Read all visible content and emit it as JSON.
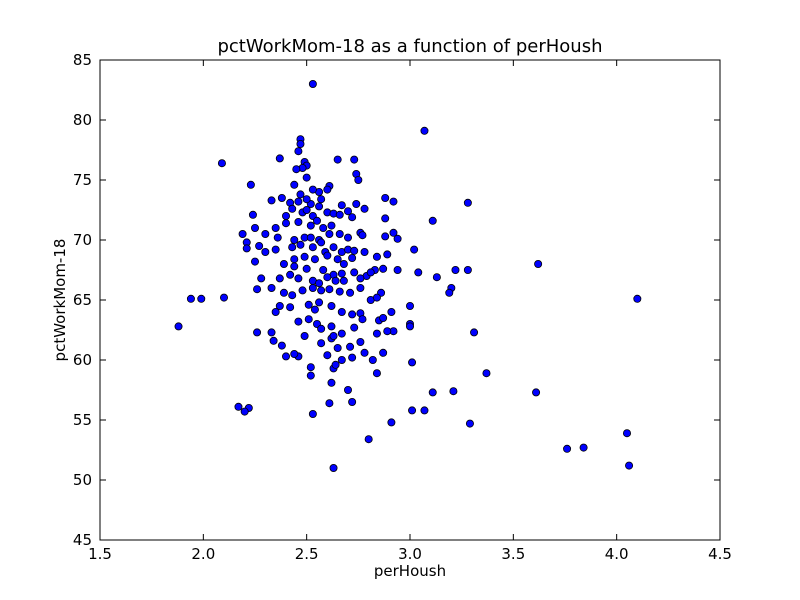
{
  "chart_data": {
    "type": "scatter",
    "title": "pctWorkMom-18 as a function of perHoush",
    "xlabel": "perHoush",
    "ylabel": "pctWorkMom-18",
    "xlim": [
      1.5,
      4.5
    ],
    "ylim": [
      45,
      85
    ],
    "x_ticks": [
      "1.5",
      "2.0",
      "2.5",
      "3.0",
      "3.5",
      "4.0",
      "4.5"
    ],
    "y_ticks": [
      "45",
      "50",
      "55",
      "60",
      "65",
      "70",
      "75",
      "80",
      "85"
    ],
    "marker_color": "#0000ff",
    "marker_edge": "#000000",
    "series": [
      {
        "name": "pctWorkMom-18",
        "points": [
          [
            2.53,
            83.0
          ],
          [
            3.07,
            79.1
          ],
          [
            2.47,
            78.4
          ],
          [
            2.47,
            78.0
          ],
          [
            2.46,
            77.4
          ],
          [
            2.49,
            76.5
          ],
          [
            2.37,
            76.8
          ],
          [
            2.09,
            76.4
          ],
          [
            2.65,
            76.7
          ],
          [
            2.73,
            76.7
          ],
          [
            2.5,
            76.2
          ],
          [
            2.48,
            76.0
          ],
          [
            2.45,
            75.9
          ],
          [
            2.74,
            75.5
          ],
          [
            2.75,
            75.0
          ],
          [
            2.5,
            75.2
          ],
          [
            2.44,
            74.6
          ],
          [
            2.23,
            74.6
          ],
          [
            2.61,
            74.5
          ],
          [
            2.56,
            74.0
          ],
          [
            2.6,
            74.2
          ],
          [
            2.53,
            74.2
          ],
          [
            2.47,
            73.8
          ],
          [
            2.38,
            73.5
          ],
          [
            2.46,
            73.2
          ],
          [
            2.42,
            73.1
          ],
          [
            2.52,
            73.0
          ],
          [
            2.33,
            73.3
          ],
          [
            2.5,
            73.4
          ],
          [
            2.57,
            73.4
          ],
          [
            2.67,
            72.9
          ],
          [
            2.74,
            73.0
          ],
          [
            2.88,
            73.5
          ],
          [
            2.92,
            73.2
          ],
          [
            3.28,
            73.1
          ],
          [
            2.43,
            72.6
          ],
          [
            2.48,
            72.3
          ],
          [
            2.5,
            72.5
          ],
          [
            2.4,
            72.0
          ],
          [
            2.56,
            72.8
          ],
          [
            2.6,
            72.3
          ],
          [
            2.63,
            72.2
          ],
          [
            2.7,
            72.4
          ],
          [
            2.78,
            72.6
          ],
          [
            2.24,
            72.1
          ],
          [
            2.53,
            72.0
          ],
          [
            2.55,
            71.6
          ],
          [
            2.66,
            72.1
          ],
          [
            2.72,
            71.9
          ],
          [
            2.88,
            71.8
          ],
          [
            3.11,
            71.6
          ],
          [
            2.35,
            71.0
          ],
          [
            2.4,
            71.4
          ],
          [
            2.46,
            71.5
          ],
          [
            2.52,
            71.2
          ],
          [
            2.58,
            71.0
          ],
          [
            2.62,
            71.2
          ],
          [
            2.25,
            71.0
          ],
          [
            2.3,
            70.5
          ],
          [
            2.19,
            70.5
          ],
          [
            2.36,
            70.2
          ],
          [
            2.44,
            70.0
          ],
          [
            2.49,
            70.2
          ],
          [
            2.52,
            70.2
          ],
          [
            2.56,
            70.0
          ],
          [
            2.61,
            70.5
          ],
          [
            2.66,
            70.5
          ],
          [
            2.7,
            70.2
          ],
          [
            2.76,
            70.6
          ],
          [
            2.77,
            70.4
          ],
          [
            2.88,
            70.3
          ],
          [
            2.92,
            70.6
          ],
          [
            2.94,
            70.1
          ],
          [
            2.21,
            69.8
          ],
          [
            2.27,
            69.5
          ],
          [
            2.3,
            69.0
          ],
          [
            2.35,
            69.2
          ],
          [
            2.43,
            69.4
          ],
          [
            2.47,
            69.6
          ],
          [
            2.53,
            69.4
          ],
          [
            2.57,
            69.8
          ],
          [
            2.59,
            69.0
          ],
          [
            2.63,
            69.4
          ],
          [
            2.67,
            69.0
          ],
          [
            2.7,
            69.2
          ],
          [
            2.73,
            69.1
          ],
          [
            2.78,
            69.0
          ],
          [
            2.89,
            68.8
          ],
          [
            3.02,
            69.2
          ],
          [
            2.21,
            69.3
          ],
          [
            2.25,
            68.2
          ],
          [
            2.39,
            68.0
          ],
          [
            2.44,
            68.4
          ],
          [
            2.49,
            68.6
          ],
          [
            2.54,
            68.4
          ],
          [
            2.6,
            68.7
          ],
          [
            2.65,
            68.4
          ],
          [
            2.68,
            68.0
          ],
          [
            2.72,
            68.5
          ],
          [
            2.84,
            68.6
          ],
          [
            2.44,
            67.8
          ],
          [
            2.5,
            67.6
          ],
          [
            2.58,
            67.5
          ],
          [
            2.63,
            67.1
          ],
          [
            2.67,
            67.2
          ],
          [
            2.73,
            67.3
          ],
          [
            2.79,
            67.0
          ],
          [
            2.83,
            67.5
          ],
          [
            2.87,
            67.6
          ],
          [
            2.94,
            67.5
          ],
          [
            3.04,
            67.3
          ],
          [
            3.22,
            67.5
          ],
          [
            3.28,
            67.5
          ],
          [
            3.13,
            66.9
          ],
          [
            3.62,
            68.0
          ],
          [
            2.28,
            66.8
          ],
          [
            2.37,
            66.8
          ],
          [
            2.42,
            67.1
          ],
          [
            2.46,
            66.8
          ],
          [
            2.53,
            66.6
          ],
          [
            2.56,
            66.4
          ],
          [
            2.6,
            66.9
          ],
          [
            2.64,
            66.6
          ],
          [
            2.68,
            66.6
          ],
          [
            2.76,
            66.8
          ],
          [
            2.81,
            67.3
          ],
          [
            2.33,
            66.0
          ],
          [
            2.39,
            65.6
          ],
          [
            2.43,
            65.4
          ],
          [
            2.48,
            65.8
          ],
          [
            2.53,
            66.0
          ],
          [
            2.57,
            65.8
          ],
          [
            2.61,
            65.9
          ],
          [
            2.66,
            65.7
          ],
          [
            2.71,
            65.6
          ],
          [
            2.76,
            66.0
          ],
          [
            2.86,
            65.6
          ],
          [
            3.2,
            66.0
          ],
          [
            3.19,
            65.6
          ],
          [
            2.26,
            65.9
          ],
          [
            2.37,
            64.5
          ],
          [
            1.94,
            65.1
          ],
          [
            1.99,
            65.1
          ],
          [
            2.1,
            65.2
          ],
          [
            2.42,
            64.4
          ],
          [
            2.51,
            64.6
          ],
          [
            2.54,
            64.2
          ],
          [
            2.56,
            64.8
          ],
          [
            2.62,
            64.5
          ],
          [
            2.67,
            64.0
          ],
          [
            2.72,
            63.8
          ],
          [
            2.76,
            63.9
          ],
          [
            2.81,
            65.0
          ],
          [
            2.84,
            65.2
          ],
          [
            2.91,
            64.0
          ],
          [
            3.0,
            64.5
          ],
          [
            4.1,
            65.1
          ],
          [
            2.35,
            64.0
          ],
          [
            2.33,
            62.3
          ],
          [
            2.46,
            63.2
          ],
          [
            2.51,
            63.4
          ],
          [
            2.55,
            63.0
          ],
          [
            2.57,
            62.6
          ],
          [
            2.62,
            62.8
          ],
          [
            2.67,
            62.2
          ],
          [
            2.73,
            62.7
          ],
          [
            2.77,
            63.4
          ],
          [
            2.85,
            63.3
          ],
          [
            2.87,
            63.5
          ],
          [
            2.92,
            62.4
          ],
          [
            3.0,
            63.0
          ],
          [
            3.31,
            62.3
          ],
          [
            1.88,
            62.8
          ],
          [
            2.26,
            62.3
          ],
          [
            2.34,
            61.6
          ],
          [
            2.38,
            61.2
          ],
          [
            2.49,
            62.0
          ],
          [
            2.57,
            61.4
          ],
          [
            2.62,
            61.8
          ],
          [
            2.63,
            62.0
          ],
          [
            2.65,
            61.0
          ],
          [
            2.71,
            61.1
          ],
          [
            2.76,
            61.5
          ],
          [
            2.84,
            62.2
          ],
          [
            2.89,
            62.4
          ],
          [
            3.0,
            62.8
          ],
          [
            2.4,
            60.3
          ],
          [
            2.46,
            60.3
          ],
          [
            2.44,
            60.5
          ],
          [
            2.6,
            60.4
          ],
          [
            2.67,
            60.0
          ],
          [
            2.72,
            60.2
          ],
          [
            2.78,
            60.6
          ],
          [
            2.82,
            60.0
          ],
          [
            2.87,
            60.6
          ],
          [
            3.01,
            59.8
          ],
          [
            2.52,
            59.4
          ],
          [
            2.52,
            58.7
          ],
          [
            2.63,
            59.3
          ],
          [
            2.64,
            59.6
          ],
          [
            2.84,
            58.9
          ],
          [
            3.37,
            58.9
          ],
          [
            2.62,
            58.1
          ],
          [
            2.7,
            57.5
          ],
          [
            3.11,
            57.3
          ],
          [
            3.21,
            57.4
          ],
          [
            3.61,
            57.3
          ],
          [
            2.61,
            56.4
          ],
          [
            2.72,
            56.5
          ],
          [
            2.17,
            56.1
          ],
          [
            2.22,
            56.0
          ],
          [
            2.2,
            55.7
          ],
          [
            2.53,
            55.5
          ],
          [
            3.01,
            55.8
          ],
          [
            3.07,
            55.8
          ],
          [
            2.91,
            54.8
          ],
          [
            3.29,
            54.7
          ],
          [
            2.8,
            53.4
          ],
          [
            4.05,
            53.9
          ],
          [
            3.76,
            52.6
          ],
          [
            3.84,
            52.7
          ],
          [
            4.06,
            51.2
          ],
          [
            2.63,
            51.0
          ]
        ]
      }
    ]
  }
}
